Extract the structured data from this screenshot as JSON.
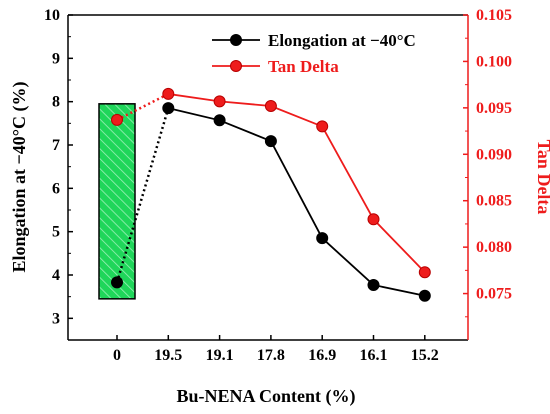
{
  "chart_data": {
    "type": "line",
    "categories": [
      "0",
      "19.5",
      "19.1",
      "17.8",
      "16.9",
      "16.1",
      "15.2"
    ],
    "xlabel": "Bu-NENA Content (%)",
    "ylabel": "Elongation at −40°C (%)",
    "y2label": "Tan Delta",
    "ylim": [
      2.5,
      10
    ],
    "y2lim": [
      0.07,
      0.105
    ],
    "yticks": [
      "3",
      "4",
      "5",
      "6",
      "7",
      "8",
      "9",
      "10"
    ],
    "y2ticks": [
      "0.075",
      "0.080",
      "0.085",
      "0.090",
      "0.095",
      "0.100",
      "0.105"
    ],
    "legend_position": "top-right",
    "series": [
      {
        "name": "Elongation at −40°C",
        "axis": "left",
        "color": "#000000",
        "values": [
          3.83,
          7.85,
          7.57,
          7.09,
          4.85,
          3.77,
          3.52
        ]
      },
      {
        "name": "Tan Delta",
        "axis": "right",
        "color": "#ee1c1c",
        "values": [
          0.0937,
          0.0965,
          0.0957,
          0.0952,
          0.093,
          0.083,
          0.0773
        ]
      }
    ],
    "highlight": {
      "category": "0",
      "color": "#1fd65a",
      "from": 3.45,
      "to": 7.95
    }
  }
}
